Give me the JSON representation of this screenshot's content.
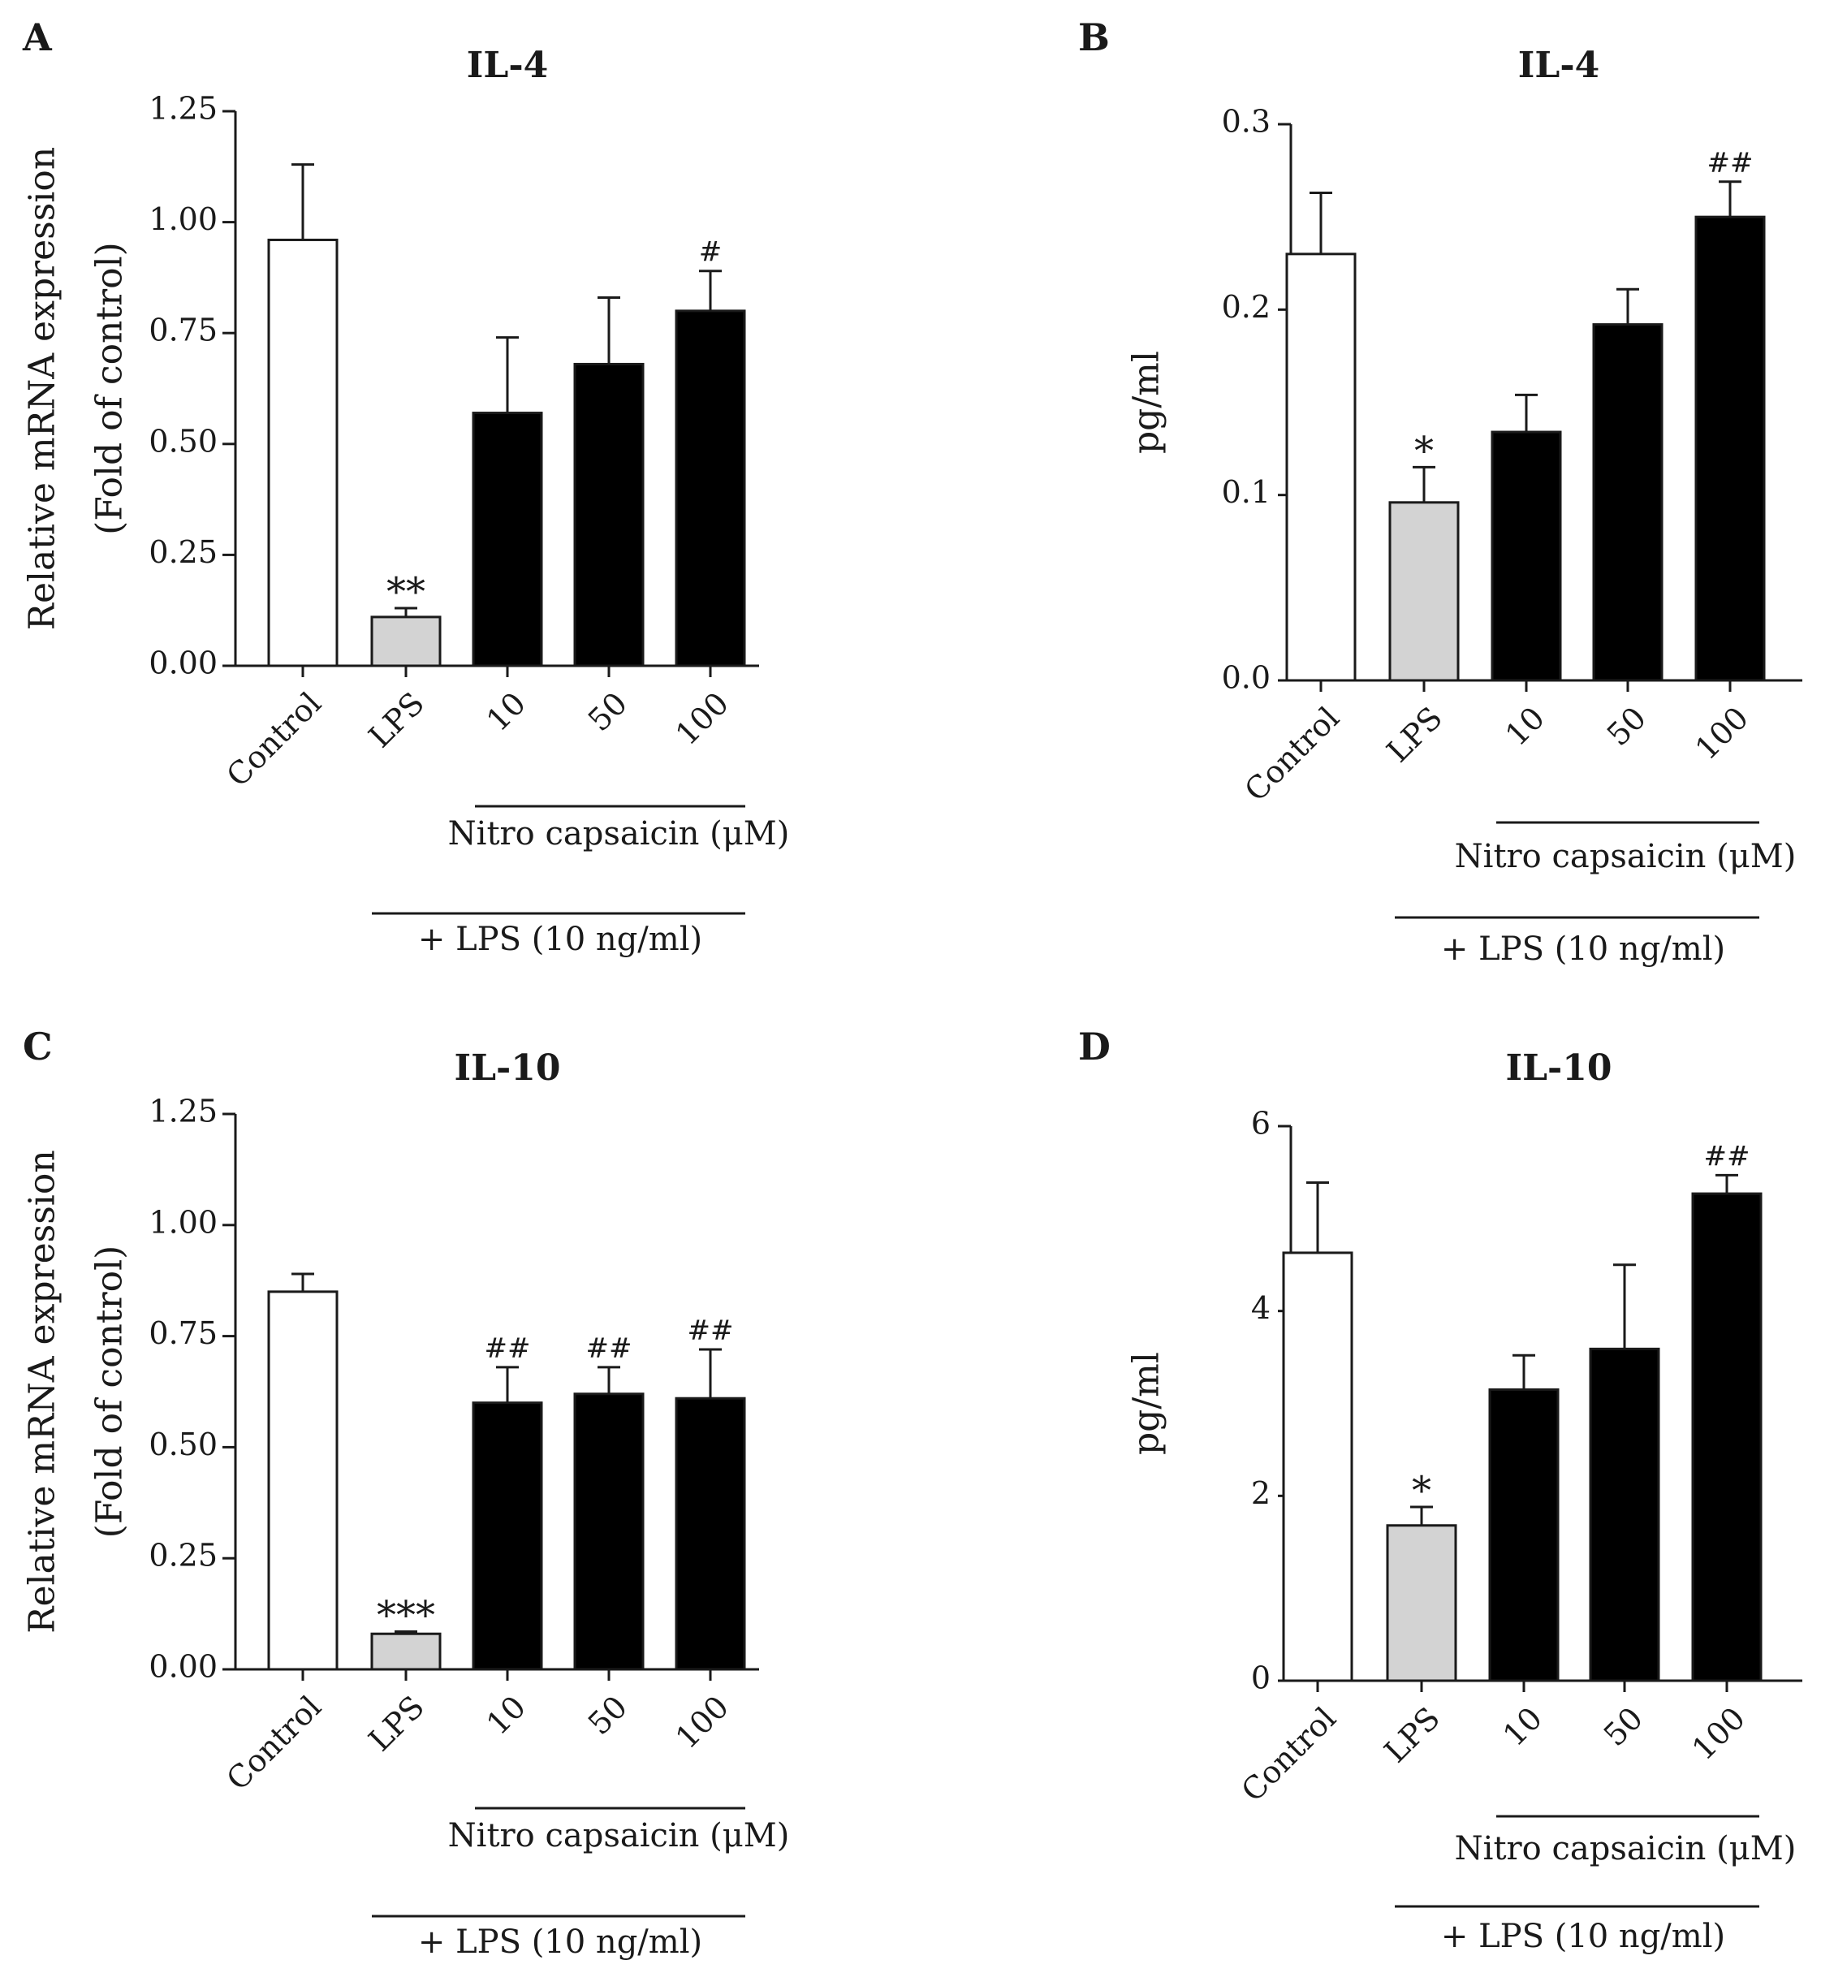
{
  "figure": {
    "panels": [
      {
        "letter": "A",
        "title": "IL-4",
        "ylabel_lines": [
          "Relative mRNA expression",
          "(Fold of control)"
        ],
        "ytick_labels": [
          "0.00",
          "0.25",
          "0.50",
          "0.75",
          "1.00",
          "1.25"
        ],
        "categories": [
          "Control",
          "LPS",
          "10",
          "50",
          "100"
        ],
        "group_label": "Nitro capsaicin (μM)",
        "outer_label": "+ LPS (10 ng/ml)"
      },
      {
        "letter": "B",
        "title": "IL-4",
        "ylabel_lines": [
          "pg/ml"
        ],
        "ytick_labels": [
          "0.0",
          "0.1",
          "0.2",
          "0.3"
        ],
        "categories": [
          "Control",
          "LPS",
          "10",
          "50",
          "100"
        ],
        "group_label": "Nitro capsaicin (μM)",
        "outer_label": "+ LPS (10 ng/ml)"
      },
      {
        "letter": "C",
        "title": "IL-10",
        "ylabel_lines": [
          "Relative mRNA expression",
          "(Fold of control)"
        ],
        "ytick_labels": [
          "0.00",
          "0.25",
          "0.50",
          "0.75",
          "1.00",
          "1.25"
        ],
        "categories": [
          "Control",
          "LPS",
          "10",
          "50",
          "100"
        ],
        "group_label": "Nitro capsaicin (μM)",
        "outer_label": "+ LPS (10 ng/ml)"
      },
      {
        "letter": "D",
        "title": "IL-10",
        "ylabel_lines": [
          "pg/ml"
        ],
        "ytick_labels": [
          "0",
          "2",
          "4",
          "6"
        ],
        "categories": [
          "Control",
          "LPS",
          "10",
          "50",
          "100"
        ],
        "group_label": "Nitro capsaicin (μM)",
        "outer_label": "+ LPS (10 ng/ml)"
      }
    ]
  },
  "colors": {
    "control_fill": "#ffffff",
    "lps_fill": "#d3d3d3",
    "treatment_fill": "#000000",
    "axis": "#1a1a1a"
  },
  "chart_data": [
    {
      "type": "bar",
      "title": "IL-4",
      "ylabel": "Relative mRNA expression (Fold of control)",
      "categories": [
        "Control",
        "LPS",
        "10",
        "50",
        "100"
      ],
      "values": [
        0.96,
        0.11,
        0.57,
        0.68,
        0.8
      ],
      "errors": [
        0.17,
        0.02,
        0.17,
        0.15,
        0.09
      ],
      "annotations": [
        "",
        "**",
        "",
        "",
        "#"
      ],
      "ylim": [
        0,
        1.25
      ],
      "yticks": [
        0,
        0.25,
        0.5,
        0.75,
        1.0,
        1.25
      ],
      "grid": false
    },
    {
      "type": "bar",
      "title": "IL-4",
      "ylabel": "pg/ml",
      "categories": [
        "Control",
        "LPS",
        "10",
        "50",
        "100"
      ],
      "values": [
        0.23,
        0.096,
        0.134,
        0.192,
        0.25
      ],
      "errors": [
        0.033,
        0.019,
        0.02,
        0.019,
        0.019
      ],
      "annotations": [
        "",
        "*",
        "",
        "",
        "##"
      ],
      "ylim": [
        0,
        0.3
      ],
      "yticks": [
        0,
        0.1,
        0.2,
        0.3
      ],
      "grid": false
    },
    {
      "type": "bar",
      "title": "IL-10",
      "ylabel": "Relative mRNA expression (Fold of control)",
      "categories": [
        "Control",
        "LPS",
        "10",
        "50",
        "100"
      ],
      "values": [
        0.85,
        0.08,
        0.6,
        0.62,
        0.61
      ],
      "errors": [
        0.04,
        0.005,
        0.08,
        0.06,
        0.11
      ],
      "annotations": [
        "",
        "***",
        "##",
        "##",
        "##"
      ],
      "ylim": [
        0,
        1.25
      ],
      "yticks": [
        0,
        0.25,
        0.5,
        0.75,
        1.0,
        1.25
      ],
      "grid": false
    },
    {
      "type": "bar",
      "title": "IL-10",
      "ylabel": "pg/ml",
      "categories": [
        "Control",
        "LPS",
        "10",
        "50",
        "100"
      ],
      "values": [
        4.63,
        1.68,
        3.15,
        3.59,
        5.27
      ],
      "errors": [
        0.76,
        0.2,
        0.37,
        0.91,
        0.2
      ],
      "annotations": [
        "",
        "*",
        "",
        "",
        "##"
      ],
      "ylim": [
        0,
        6
      ],
      "yticks": [
        0,
        2,
        4,
        6
      ],
      "grid": false
    }
  ]
}
